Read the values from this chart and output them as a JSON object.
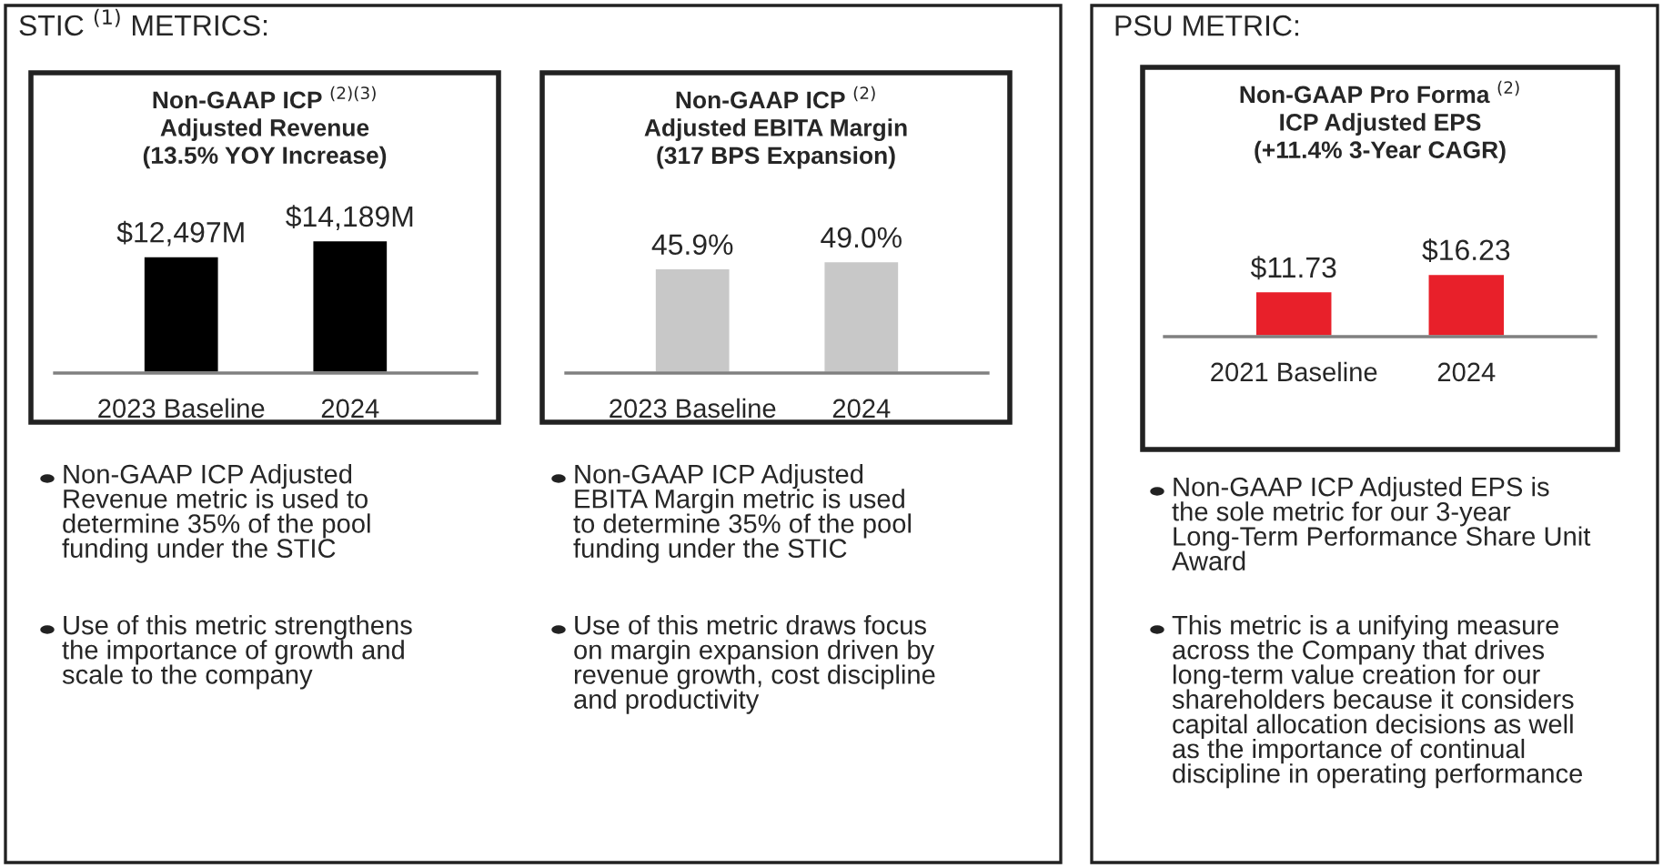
{
  "chart_data": [
    {
      "type": "bar",
      "title": "Non-GAAP ICP $^{(2)(3)}$\nAdjusted Revenue\n(13.5% YOY Increase)",
      "categories": [
        "2023 Baseline",
        "2024"
      ],
      "values": [
        12497,
        14189
      ],
      "value_labels": [
        "$12,497M",
        "$14,189M"
      ],
      "color": "#000000",
      "annotations": [
        "STIC $^{(1)}$ METRICS:",
        "Non-GAAP ICP Adjusted\nRevenue metric is used to\ndetermine 35% of the pool\nfunding under the STIC",
        "Use of this metric strengthens\nthe importance of growth and\nscale to the company"
      ]
    },
    {
      "type": "bar",
      "title": "Non-GAAP ICP $^{(2)}$\nAdjusted EBITA Margin\n(317 BPS Expansion)",
      "categories": [
        "2023 Baseline",
        "2024"
      ],
      "values": [
        45.9,
        49.0
      ],
      "value_labels": [
        "45.9%",
        "49.0%"
      ],
      "color": "#c8c8c8",
      "annotations": [
        "Non-GAAP ICP Adjusted\nEBITA Margin metric is used\nto determine 35% of the pool\nfunding under the STIC",
        "Use of this metric draws focus\non margin expansion driven by\nrevenue growth, cost discipline\nand productivity"
      ]
    },
    {
      "type": "bar",
      "title": "Non-GAAP Pro Forma $^{(2)}$\nICP Adjusted EPS\n(+11.4% 3-Year CAGR)",
      "categories": [
        "2021 Baseline",
        "2024"
      ],
      "values": [
        11.73,
        16.23
      ],
      "value_labels": [
        "$11.73",
        "$16.23"
      ],
      "color": "#e8202a",
      "annotations": [
        "PSU METRIC:",
        "Non-GAAP ICP Adjusted EPS is\nthe sole metric for our 3-year\nLong-Term Performance Share Unit\nAward",
        "This metric is a unifying measure\nacross the Company that drives\nlong-term value creation for our\nshareholders because it considers\ncapital allocation decisions as well\nas the importance of continual\ndiscipline in operating performance"
      ]
    }
  ]
}
